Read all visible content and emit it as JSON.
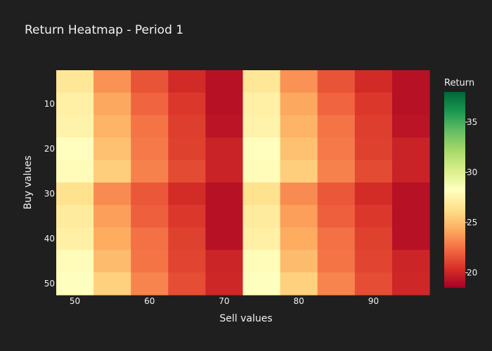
{
  "chart_data": {
    "type": "heatmap",
    "title": "Return Heatmap - Period 1",
    "xlabel": "Sell values",
    "ylabel": "Buy values",
    "x": [
      50,
      55,
      60,
      65,
      70,
      75,
      80,
      85,
      90,
      95
    ],
    "y": [
      5,
      10,
      15,
      20,
      25,
      30,
      35,
      40,
      45,
      50
    ],
    "x_tick_labels": [
      "50",
      "60",
      "70",
      "80",
      "90"
    ],
    "x_tick_values": [
      50,
      60,
      70,
      80,
      90
    ],
    "y_tick_labels": [
      "10",
      "20",
      "30",
      "40",
      "50"
    ],
    "y_tick_values": [
      10,
      20,
      30,
      40,
      50
    ],
    "colorscale": "RdYlGn",
    "zmin": 18.5,
    "zmax": 38,
    "colorbar": {
      "title": "Return",
      "tick_labels": [
        "20",
        "25",
        "30",
        "35"
      ],
      "tick_values": [
        20,
        25,
        30,
        35
      ]
    },
    "z": [
      [
        26.8,
        23.5,
        21.6,
        20.2,
        19.2,
        26.8,
        23.5,
        21.6,
        20.2,
        19.2
      ],
      [
        27.3,
        24.2,
        22.1,
        20.7,
        19.2,
        27.3,
        24.2,
        22.1,
        20.7,
        19.2
      ],
      [
        27.5,
        24.6,
        22.6,
        20.9,
        19.3,
        27.5,
        24.6,
        22.6,
        20.9,
        19.3
      ],
      [
        28.2,
        25.1,
        22.8,
        21.0,
        19.9,
        28.2,
        25.1,
        22.8,
        21.0,
        19.9
      ],
      [
        28.0,
        25.6,
        23.0,
        21.3,
        19.9,
        28.0,
        25.6,
        23.0,
        21.3,
        19.9
      ],
      [
        26.4,
        23.3,
        21.7,
        20.3,
        19.2,
        26.4,
        23.3,
        21.7,
        20.3,
        19.2
      ],
      [
        27.0,
        23.9,
        22.0,
        20.7,
        19.2,
        27.0,
        23.9,
        22.0,
        20.7,
        19.2
      ],
      [
        27.3,
        24.3,
        22.5,
        21.0,
        19.2,
        27.3,
        24.3,
        22.5,
        21.0,
        19.2
      ],
      [
        28.0,
        24.9,
        22.6,
        21.1,
        20.0,
        28.0,
        24.9,
        22.6,
        21.1,
        20.0
      ],
      [
        28.3,
        25.7,
        23.1,
        21.4,
        20.1,
        28.3,
        25.7,
        23.1,
        21.4,
        20.1
      ]
    ]
  }
}
